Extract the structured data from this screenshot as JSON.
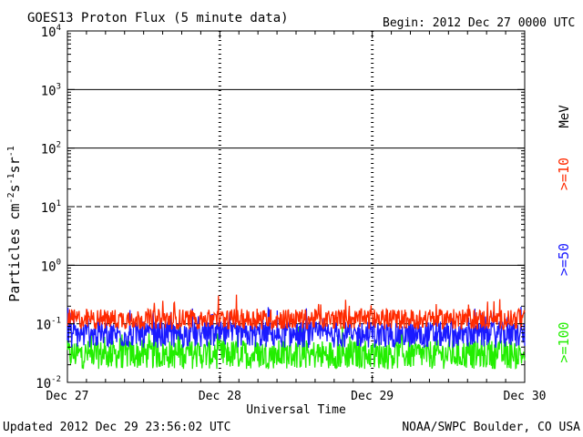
{
  "chart_data": {
    "type": "line",
    "title": "GOES13 Proton Flux (5 minute data)",
    "begin_label": "Begin: 2012 Dec 27 0000 UTC",
    "xlabel": "Universal Time",
    "ylabel_main": "Particles cm",
    "ylabel_sup1": "-2",
    "ylabel_mid1": "s",
    "ylabel_sup2": "-1",
    "ylabel_mid2": "sr",
    "ylabel_sup3": "-1",
    "x_ticks": [
      "Dec 27",
      "Dec 28",
      "Dec 29",
      "Dec 30"
    ],
    "x_range_days": [
      0,
      3
    ],
    "y_scale": "log",
    "ylim": [
      0.01,
      10000
    ],
    "y_ticks": [
      {
        "base": "10",
        "exp": "-2"
      },
      {
        "base": "10",
        "exp": "-1"
      },
      {
        "base": "10",
        "exp": "0"
      },
      {
        "base": "10",
        "exp": "1"
      },
      {
        "base": "10",
        "exp": "2"
      },
      {
        "base": "10",
        "exp": "3"
      },
      {
        "base": "10",
        "exp": "4"
      }
    ],
    "unit_label": "MeV",
    "series": [
      {
        "name": ">=10",
        "color": "#ff2a00",
        "median": 0.12,
        "spread": 0.35,
        "min": 0.08,
        "max": 0.38
      },
      {
        "name": ">=50",
        "color": "#1a1aff",
        "median": 0.065,
        "spread": 0.45,
        "min": 0.035,
        "max": 0.2
      },
      {
        "name": ">=100",
        "color": "#22ee00",
        "median": 0.03,
        "spread": 0.5,
        "min": 0.017,
        "max": 0.09
      }
    ],
    "threshold_lines": [
      {
        "value": 10,
        "style": "dashed"
      },
      {
        "value": 0.1,
        "style": "dashed"
      }
    ]
  },
  "footer": {
    "updated": "Updated 2012 Dec 29 23:56:02 UTC",
    "source": "NOAA/SWPC Boulder, CO USA"
  }
}
